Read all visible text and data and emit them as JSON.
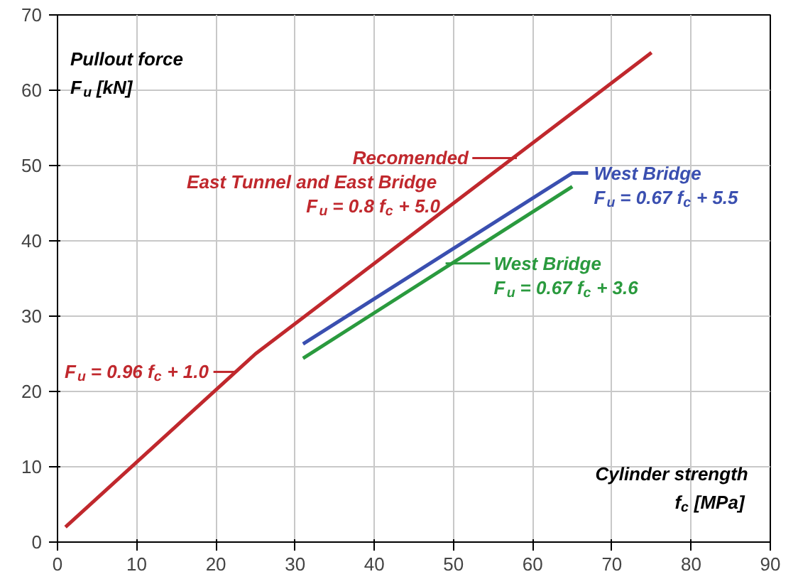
{
  "chart_data": {
    "type": "line",
    "xlabel": "Cylinder strength",
    "ylabel": "Pullout force",
    "xlim": [
      0,
      90
    ],
    "ylim": [
      0,
      70
    ],
    "xticks": [
      0,
      10,
      20,
      30,
      40,
      50,
      60,
      70,
      80,
      90
    ],
    "yticks": [
      0,
      10,
      20,
      30,
      40,
      50,
      60,
      70
    ],
    "grid": true,
    "marker": "none",
    "line_style": "solid",
    "series": [
      {
        "color": "#c0282d",
        "x": [
          1,
          25,
          75
        ],
        "values": [
          2,
          25,
          65
        ]
      },
      {
        "color": "#3a4fb0",
        "x": [
          31,
          65,
          67
        ],
        "values": [
          26.3,
          49,
          49
        ]
      },
      {
        "color": "#2a9a3e",
        "x": [
          31,
          65
        ],
        "values": [
          24.4,
          47.2
        ]
      }
    ],
    "annotations": [
      "f$_{c}$ [MPa]",
      "F$_{u}$ [kN]",
      {
        "text": "Recomended",
        "x": 58,
        "y": 51
      },
      "East Tunnel and East Bridge",
      "F$_{u}$ = 0.8 f$_{c}$ + 5.0",
      {
        "text": "F$_{u}$ = 0.96 f$_{c}$ + 1.0",
        "x": 22.5,
        "y": 22.6
      },
      {
        "text": "West Bridge",
        "x": 67,
        "y": 49
      },
      "F$_{u}$ = 0.67 f$_{c}$ + 5.5",
      {
        "text": "West Bridge",
        "x": 49,
        "y": 37
      },
      "F$_{u}$ = 0.67 f$_{c}$ + 3.6"
    ]
  }
}
